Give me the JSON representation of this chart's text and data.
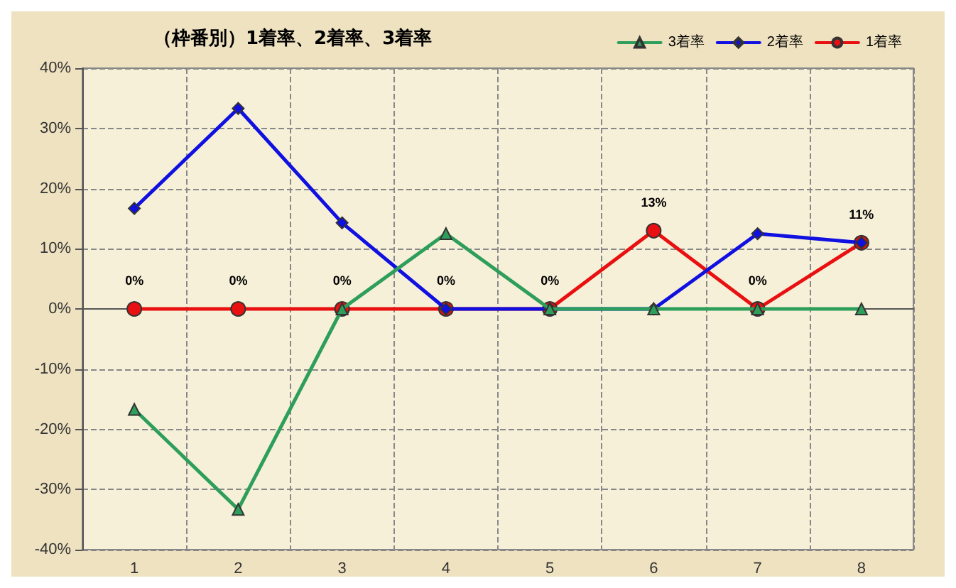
{
  "chart_data": {
    "type": "line",
    "title": "（枠番別）1着率、2着率、3着率",
    "categories": [
      "1",
      "2",
      "3",
      "4",
      "5",
      "6",
      "7",
      "8"
    ],
    "series": [
      {
        "name": "3着率",
        "color": "#2e9e5b",
        "marker": "triangle",
        "values": [
          -16.7,
          -33.3,
          0,
          12.5,
          0,
          0,
          0,
          0
        ]
      },
      {
        "name": "2着率",
        "color": "#1010e0",
        "marker": "diamond",
        "values": [
          16.7,
          33.3,
          14.3,
          0,
          0,
          0,
          12.5,
          11
        ]
      },
      {
        "name": "1着率",
        "color": "#e81010",
        "marker": "circle",
        "values": [
          0,
          0,
          0,
          0,
          0,
          13,
          0,
          11
        ],
        "value_labels": [
          "0%",
          "0%",
          "0%",
          "0%",
          "0%",
          "13%",
          "0%",
          "11%"
        ]
      }
    ],
    "ylim": [
      -40,
      40
    ],
    "yticks": [
      {
        "value": -40,
        "label": "-40%"
      },
      {
        "value": -30,
        "label": "-30%"
      },
      {
        "value": -20,
        "label": "-20%"
      },
      {
        "value": -10,
        "label": "-10%"
      },
      {
        "value": 0,
        "label": "0%"
      },
      {
        "value": 10,
        "label": "10%"
      },
      {
        "value": 20,
        "label": "20%"
      },
      {
        "value": 30,
        "label": "30%"
      },
      {
        "value": 40,
        "label": "40%"
      }
    ],
    "grid": true,
    "legend": "top right",
    "line_style": "solid"
  }
}
